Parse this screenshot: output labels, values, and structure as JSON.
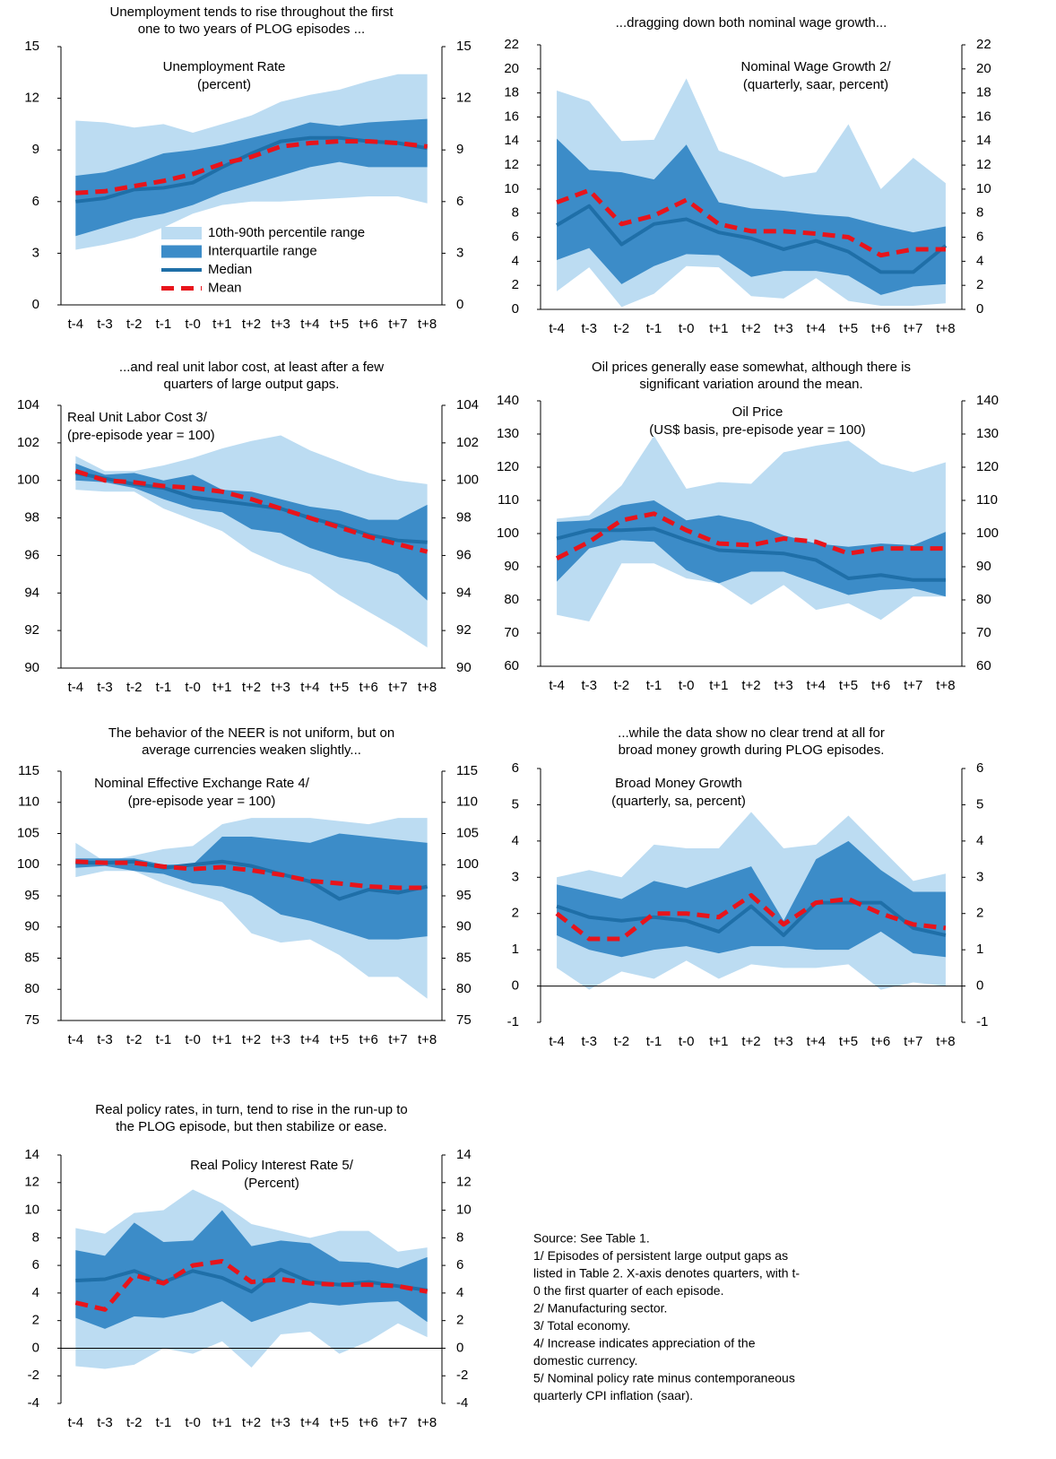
{
  "chart_data": [
    {
      "type": "band",
      "title": [
        "Unemployment tends to rise throughout the first",
        "one to two years of  PLOG episodes ..."
      ],
      "label": [
        "Unemployment Rate",
        "(percent)"
      ],
      "categories": [
        "t-4",
        "t-3",
        "t-2",
        "t-1",
        "t-0",
        "t+1",
        "t+2",
        "t+3",
        "t+4",
        "t+5",
        "t+6",
        "t+7",
        "t+8"
      ],
      "ylim": [
        0,
        15
      ],
      "yticks": [
        0,
        3,
        6,
        9,
        12,
        15
      ],
      "series": [
        {
          "name": "10th-90th percentile range",
          "color": "#bcdcf2",
          "low": [
            3.2,
            3.5,
            3.9,
            4.5,
            5.3,
            5.8,
            6.0,
            6.0,
            6.1,
            6.2,
            6.3,
            6.3,
            5.9
          ],
          "high": [
            10.7,
            10.6,
            10.3,
            10.5,
            10.0,
            10.5,
            11.0,
            11.8,
            12.2,
            12.5,
            13.0,
            13.4,
            13.4
          ]
        },
        {
          "name": "Interquartile range",
          "color": "#3c8cc8",
          "low": [
            4.0,
            4.5,
            5.0,
            5.3,
            5.8,
            6.5,
            7.0,
            7.5,
            8.0,
            8.3,
            8.0,
            8.0,
            8.0
          ],
          "high": [
            7.5,
            7.7,
            8.2,
            8.8,
            9.0,
            9.3,
            9.7,
            10.1,
            10.6,
            10.4,
            10.6,
            10.7,
            10.8
          ]
        },
        {
          "name": "Median",
          "color": "#1f6fa8",
          "values": [
            6.0,
            6.2,
            6.7,
            6.8,
            7.1,
            8.0,
            8.8,
            9.5,
            9.7,
            9.7,
            9.5,
            9.4,
            9.1
          ]
        },
        {
          "name": "Mean",
          "color": "#e8141b",
          "dashed": true,
          "values": [
            6.5,
            6.6,
            6.9,
            7.2,
            7.6,
            8.2,
            8.6,
            9.2,
            9.4,
            9.5,
            9.5,
            9.4,
            9.2
          ]
        }
      ]
    },
    {
      "type": "band",
      "title": [
        "...dragging down both nominal wage growth..."
      ],
      "label": [
        "Nominal Wage Growth 2/",
        "(quarterly, saar, percent)"
      ],
      "categories": [
        "t-4",
        "t-3",
        "t-2",
        "t-1",
        "t-0",
        "t+1",
        "t+2",
        "t+3",
        "t+4",
        "t+5",
        "t+6",
        "t+7",
        "t+8"
      ],
      "ylim": [
        0,
        22
      ],
      "yticks": [
        0,
        2,
        4,
        6,
        8,
        10,
        12,
        14,
        16,
        18,
        20,
        22
      ],
      "series": [
        {
          "color": "#bcdcf2",
          "low": [
            1.5,
            3.5,
            0.2,
            1.3,
            3.6,
            3.5,
            1.1,
            0.9,
            2.6,
            0.7,
            0.3,
            0.3,
            0.5
          ],
          "high": [
            18.2,
            17.3,
            14,
            14.1,
            19.2,
            13.2,
            12.2,
            11,
            11.4,
            15.4,
            10,
            12.6,
            10.5
          ]
        },
        {
          "color": "#3c8cc8",
          "low": [
            4.1,
            5.1,
            2.1,
            3.6,
            4.6,
            4.5,
            2.7,
            3.2,
            3.2,
            2.8,
            1.2,
            1.9,
            2.1
          ],
          "high": [
            14.2,
            11.6,
            11.4,
            10.8,
            13.7,
            8.9,
            8.4,
            8.2,
            7.9,
            7.7,
            7,
            6.4,
            6.9
          ]
        },
        {
          "color": "#1f6fa8",
          "values": [
            7,
            8.6,
            5.4,
            7.1,
            7.5,
            6.4,
            5.9,
            5,
            5.7,
            4.8,
            3.1,
            3.1,
            5.3
          ]
        },
        {
          "color": "#e8141b",
          "dashed": true,
          "values": [
            8.9,
            9.9,
            7.1,
            7.8,
            9.1,
            7.1,
            6.5,
            6.5,
            6.3,
            6,
            4.5,
            5,
            5
          ]
        }
      ]
    },
    {
      "type": "band",
      "title": [
        "...and real unit labor cost, at least after a few",
        "quarters of large output gaps."
      ],
      "label": [
        "Real Unit Labor Cost 3/",
        "(pre-episode year = 100)"
      ],
      "categories": [
        "t-4",
        "t-3",
        "t-2",
        "t-1",
        "t-0",
        "t+1",
        "t+2",
        "t+3",
        "t+4",
        "t+5",
        "t+6",
        "t+7",
        "t+8"
      ],
      "ylim": [
        90,
        104
      ],
      "yticks": [
        90,
        92,
        94,
        96,
        98,
        100,
        102,
        104
      ],
      "series": [
        {
          "color": "#bcdcf2",
          "low": [
            99.5,
            99.4,
            99.4,
            98.5,
            97.9,
            97.3,
            96.2,
            95.5,
            95.0,
            93.9,
            93.0,
            92.1,
            91.1
          ],
          "high": [
            101.3,
            100.5,
            100.5,
            100.8,
            101.2,
            101.7,
            102.1,
            102.4,
            101.6,
            101.0,
            100.4,
            100.0,
            99.8
          ]
        },
        {
          "color": "#3c8cc8",
          "low": [
            100.0,
            99.9,
            99.6,
            99.0,
            98.5,
            98.3,
            97.4,
            97.2,
            96.4,
            95.9,
            95.6,
            95.0,
            93.6
          ],
          "high": [
            100.9,
            100.3,
            100.4,
            100.0,
            100.3,
            99.5,
            99.4,
            99.0,
            98.6,
            98.4,
            97.9,
            97.9,
            98.7
          ]
        },
        {
          "color": "#1f6fa8",
          "values": [
            100.4,
            100.1,
            99.8,
            99.6,
            99.1,
            98.9,
            98.7,
            98.5,
            98.0,
            97.6,
            97.1,
            96.8,
            96.7
          ]
        },
        {
          "color": "#e8141b",
          "dashed": true,
          "values": [
            100.5,
            100.0,
            99.9,
            99.7,
            99.6,
            99.4,
            99.0,
            98.5,
            98.0,
            97.5,
            97.0,
            96.6,
            96.2
          ]
        }
      ]
    },
    {
      "type": "band",
      "title": [
        "Oil prices generally ease somewhat, although there is",
        "significant variation around the mean."
      ],
      "label": [
        "Oil Price",
        "(US$ basis, pre-episode year = 100)"
      ],
      "categories": [
        "t-4",
        "t-3",
        "t-2",
        "t-1",
        "t-0",
        "t+1",
        "t+2",
        "t+3",
        "t+4",
        "t+5",
        "t+6",
        "t+7",
        "t+8"
      ],
      "ylim": [
        60,
        140
      ],
      "yticks": [
        60,
        70,
        80,
        90,
        100,
        110,
        120,
        130,
        140
      ],
      "series": [
        {
          "color": "#bcdcf2",
          "low": [
            75.5,
            73.5,
            91,
            91,
            86.5,
            85,
            78.5,
            84.5,
            77,
            79,
            74,
            81,
            81
          ],
          "high": [
            104.5,
            105.5,
            114.5,
            129.5,
            113.5,
            115.5,
            115,
            124.5,
            126.5,
            128,
            121,
            118.5,
            121.5
          ]
        },
        {
          "color": "#3c8cc8",
          "low": [
            85.5,
            95.5,
            98,
            97.5,
            89,
            85,
            88.5,
            88.5,
            85,
            81.5,
            83,
            83.5,
            81
          ],
          "high": [
            103.5,
            104,
            108.5,
            110,
            104,
            105.5,
            103.5,
            99.5,
            97,
            96,
            97,
            96.5,
            100.5
          ]
        },
        {
          "color": "#1f6fa8",
          "values": [
            98.5,
            101,
            101,
            101.5,
            98,
            95,
            94.5,
            94,
            92,
            86.5,
            87.5,
            86,
            86
          ]
        },
        {
          "color": "#e8141b",
          "dashed": true,
          "values": [
            92.5,
            97.5,
            104,
            106,
            101,
            97,
            96.5,
            98.5,
            97.5,
            94,
            95.5,
            95.5,
            95.5
          ]
        }
      ]
    },
    {
      "type": "band",
      "title": [
        "The behavior of the NEER is not uniform, but  on",
        "average currencies weaken slightly..."
      ],
      "label": [
        "Nominal Effective Exchange Rate 4/",
        "(pre-episode year = 100)"
      ],
      "categories": [
        "t-4",
        "t-3",
        "t-2",
        "t-1",
        "t-0",
        "t+1",
        "t+2",
        "t+3",
        "t+4",
        "t+5",
        "t+6",
        "t+7",
        "t+8"
      ],
      "ylim": [
        75,
        115
      ],
      "yticks": [
        75,
        80,
        85,
        90,
        95,
        100,
        105,
        110,
        115
      ],
      "series": [
        {
          "color": "#bcdcf2",
          "low": [
            98,
            99,
            99,
            97,
            95.5,
            94,
            89,
            87.5,
            88,
            85.5,
            82,
            82,
            78.5
          ],
          "high": [
            103.5,
            100.5,
            101.5,
            102.5,
            103,
            106.5,
            107.5,
            107.5,
            107.5,
            107,
            106.5,
            107.5,
            107.5
          ]
        },
        {
          "color": "#3c8cc8",
          "low": [
            99.5,
            99.8,
            99,
            98.5,
            97,
            96.5,
            95,
            92,
            91,
            89.5,
            88,
            88,
            88.5
          ],
          "high": [
            101,
            101,
            101,
            100,
            100,
            104.5,
            104.5,
            104,
            103.5,
            105,
            104.5,
            104,
            103.5
          ]
        },
        {
          "color": "#1f6fa8",
          "values": [
            100.3,
            100.3,
            100.5,
            99.5,
            100,
            100.5,
            99.8,
            98.5,
            97.3,
            94.5,
            96,
            95.5,
            96.5
          ]
        },
        {
          "color": "#e8141b",
          "dashed": true,
          "values": [
            100.5,
            100.3,
            100.3,
            99.7,
            99.3,
            99.6,
            99.1,
            98.4,
            97.4,
            97,
            96.5,
            96.3,
            96.3
          ]
        }
      ]
    },
    {
      "type": "band",
      "title": [
        "...while the data show no clear trend at all for",
        "broad money growth during PLOG episodes."
      ],
      "label": [
        "Broad Money Growth",
        "(quarterly, sa, percent)"
      ],
      "categories": [
        "t-4",
        "t-3",
        "t-2",
        "t-1",
        "t-0",
        "t+1",
        "t+2",
        "t+3",
        "t+4",
        "t+5",
        "t+6",
        "t+7",
        "t+8"
      ],
      "ylim": [
        -1,
        6
      ],
      "yticks": [
        -1,
        0,
        1,
        2,
        3,
        4,
        5,
        6
      ],
      "series": [
        {
          "color": "#bcdcf2",
          "low": [
            0.5,
            -0.1,
            0.4,
            0.2,
            0.7,
            0.2,
            0.6,
            0.5,
            0.5,
            0.6,
            -0.1,
            0.1,
            0.0
          ],
          "high": [
            3.0,
            3.2,
            3.0,
            3.9,
            3.8,
            3.8,
            4.8,
            3.8,
            3.9,
            4.7,
            3.8,
            2.9,
            3.1
          ]
        },
        {
          "color": "#3c8cc8",
          "low": [
            1.4,
            1.0,
            0.8,
            1.0,
            1.1,
            0.9,
            1.1,
            1.1,
            1.0,
            1.0,
            1.5,
            0.9,
            0.8
          ],
          "high": [
            2.8,
            2.6,
            2.4,
            2.9,
            2.7,
            3.0,
            3.3,
            1.8,
            3.5,
            4.0,
            3.2,
            2.6,
            2.6
          ]
        },
        {
          "color": "#1f6fa8",
          "values": [
            2.2,
            1.9,
            1.8,
            1.9,
            1.8,
            1.5,
            2.2,
            1.4,
            2.3,
            2.3,
            2.3,
            1.6,
            1.4
          ]
        },
        {
          "color": "#e8141b",
          "dashed": true,
          "values": [
            2.0,
            1.3,
            1.3,
            2.0,
            2.0,
            1.9,
            2.5,
            1.7,
            2.3,
            2.4,
            2.0,
            1.7,
            1.6
          ]
        }
      ]
    },
    {
      "type": "band",
      "title": [
        "Real policy rates, in turn, tend to rise in the run-up to",
        "the PLOG episode, but then stabilize or ease."
      ],
      "label": [
        "Real Policy Interest Rate 5/",
        "(Percent)"
      ],
      "categories": [
        "t-4",
        "t-3",
        "t-2",
        "t-1",
        "t-0",
        "t+1",
        "t+2",
        "t+3",
        "t+4",
        "t+5",
        "t+6",
        "t+7",
        "t+8"
      ],
      "ylim": [
        -4,
        14
      ],
      "yticks": [
        -4,
        -2,
        0,
        2,
        4,
        6,
        8,
        10,
        12,
        14
      ],
      "series": [
        {
          "color": "#bcdcf2",
          "low": [
            -1.3,
            -1.5,
            -1.2,
            0,
            -0.4,
            0.5,
            -1.4,
            1,
            1.2,
            -0.4,
            0.5,
            1.8,
            0.8
          ],
          "high": [
            8.7,
            8.3,
            9.8,
            10,
            11.5,
            10.5,
            9,
            8.5,
            8,
            8.5,
            8.5,
            7,
            7.3
          ]
        },
        {
          "color": "#3c8cc8",
          "low": [
            2.2,
            1.4,
            2.3,
            2.2,
            2.6,
            3.4,
            1.9,
            2.6,
            3.3,
            3.1,
            3.3,
            3.4,
            1.9
          ],
          "high": [
            7.1,
            6.7,
            9.1,
            7.7,
            7.8,
            10,
            7.4,
            7.8,
            7.6,
            6.3,
            6.2,
            5.8,
            6.6
          ]
        },
        {
          "color": "#1f6fa8",
          "values": [
            4.9,
            5,
            5.6,
            4.8,
            5.6,
            5.1,
            4.1,
            5.7,
            4.8,
            4.6,
            4.8,
            4.5,
            4.2
          ]
        },
        {
          "color": "#e8141b",
          "dashed": true,
          "values": [
            3.3,
            2.8,
            5.3,
            4.7,
            6,
            6.3,
            4.8,
            5,
            4.7,
            4.6,
            4.6,
            4.5,
            4.1
          ]
        }
      ]
    }
  ],
  "notes": [
    "Source: See Table 1.",
    "1/ Episodes of persistent large output gaps as",
    "listed in Table 2. X-axis denotes quarters, with t-",
    "0 the first quarter of each episode.",
    "2/ Manufacturing sector.",
    "3/ Total economy.",
    "4/ Increase indicates appreciation of the",
    "domestic currency.",
    "5/ Nominal policy rate minus contemporaneous",
    "quarterly CPI inflation (saar)."
  ]
}
